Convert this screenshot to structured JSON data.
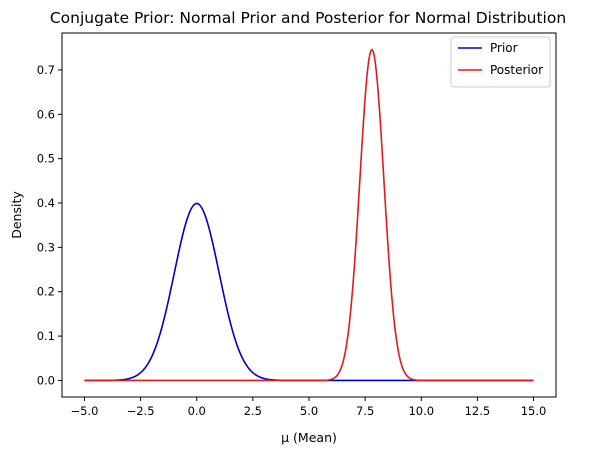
{
  "chart_data": {
    "type": "line",
    "title": "Conjugate Prior: Normal Prior and Posterior for Normal Distribution",
    "xlabel": "μ (Mean)",
    "ylabel": "Density",
    "xlim": [
      -6.0,
      16.0
    ],
    "ylim": [
      -0.0373,
      0.7833
    ],
    "x_ticks": [
      -5.0,
      -2.5,
      0.0,
      2.5,
      5.0,
      7.5,
      10.0,
      12.5,
      15.0
    ],
    "x_tick_labels": [
      "−5.0",
      "−2.5",
      "0.0",
      "2.5",
      "5.0",
      "7.5",
      "10.0",
      "12.5",
      "15.0"
    ],
    "y_ticks": [
      0.0,
      0.1,
      0.2,
      0.3,
      0.4,
      0.5,
      0.6,
      0.7
    ],
    "y_tick_labels": [
      "0.0",
      "0.1",
      "0.2",
      "0.3",
      "0.4",
      "0.5",
      "0.6",
      "0.7"
    ],
    "grid": false,
    "legend_position": "top-right",
    "x_range": [
      -5.0,
      15.0
    ],
    "series": [
      {
        "name": "Prior",
        "color": "#0000cc",
        "distribution": "normal",
        "mean": 0.0,
        "sd": 1.0
      },
      {
        "name": "Posterior",
        "color": "#e31a1c",
        "distribution": "normal",
        "mean": 7.8,
        "sd": 0.535
      }
    ]
  }
}
